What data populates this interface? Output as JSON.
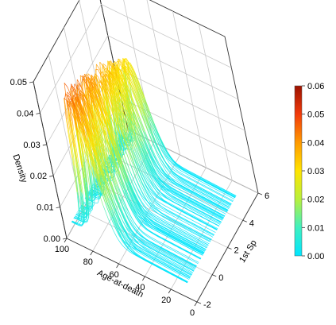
{
  "chart_data": {
    "type": "3d-line",
    "title": "",
    "xlabel": "Age-at-death",
    "ylabel": "1st Sp",
    "zlabel": "Density",
    "xlim": [
      0,
      100
    ],
    "ylim": [
      -2,
      6
    ],
    "zlim": [
      0,
      0.05
    ],
    "x_ticks": [
      "0",
      "20",
      "40",
      "60",
      "80",
      "100"
    ],
    "y_ticks": [
      "-2",
      "0",
      "2",
      "4",
      "6"
    ],
    "z_ticks": [
      "0.00",
      "0.01",
      "0.02",
      "0.03",
      "0.04",
      "0.05"
    ],
    "grid": true,
    "colorbar": {
      "min": 0,
      "max": 0.06,
      "ticks": [
        "0.00",
        "0.01",
        "0.02",
        "0.03",
        "0.04",
        "0.05",
        "0.06"
      ],
      "colors": [
        "#00E5FF",
        "#3FF0C0",
        "#B8F03C",
        "#FFE400",
        "#FF9A00",
        "#F23A0A",
        "#9C1200"
      ]
    },
    "curve_family": {
      "count": 120,
      "y_range": [
        -1.5,
        5.2
      ],
      "peak_age_range": [
        78,
        84
      ],
      "peak_density_range": [
        0.018,
        0.048
      ],
      "spread": 10.5
    }
  }
}
